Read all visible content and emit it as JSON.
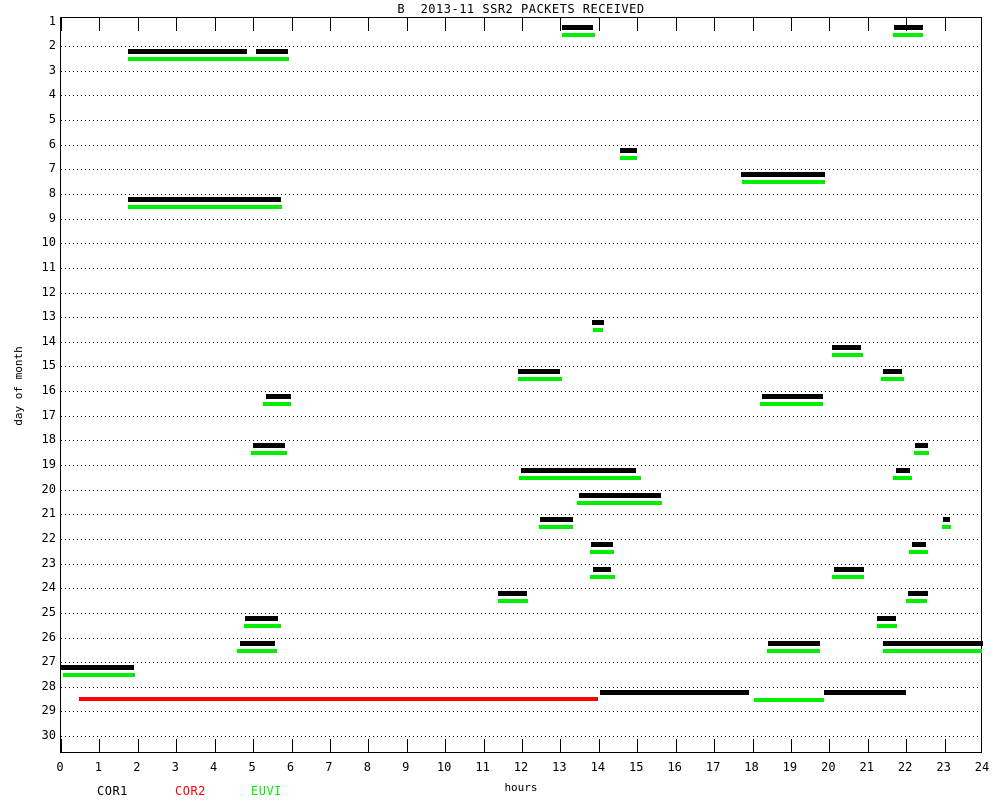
{
  "title": "B  2013-11 SSR2 PACKETS RECEIVED",
  "x_axis": {
    "title": "hours",
    "min": 0,
    "max": 24,
    "tick_labels": [
      "0",
      "1",
      "2",
      "3",
      "4",
      "5",
      "6",
      "7",
      "8",
      "9",
      "10",
      "11",
      "12",
      "13",
      "14",
      "15",
      "16",
      "17",
      "18",
      "19",
      "20",
      "21",
      "22",
      "23",
      "24"
    ]
  },
  "y_axis": {
    "title": "day of month",
    "min": 1,
    "max": 30,
    "tick_labels": [
      "1",
      "2",
      "3",
      "4",
      "5",
      "6",
      "7",
      "8",
      "9",
      "10",
      "11",
      "12",
      "13",
      "14",
      "15",
      "16",
      "17",
      "18",
      "19",
      "20",
      "21",
      "22",
      "23",
      "24",
      "25",
      "26",
      "27",
      "28",
      "29",
      "30"
    ]
  },
  "legend": [
    {
      "label": "COR1",
      "color": "#000000"
    },
    {
      "label": "COR2",
      "color": "#ff0000"
    },
    {
      "label": "EUVI",
      "color": "#00ef00"
    }
  ],
  "chart_data": {
    "type": "bar",
    "subtype": "gantt-timeline",
    "title": "B  2013-11 SSR2 PACKETS RECEIVED",
    "xlabel": "hours",
    "ylabel": "day of month",
    "xlim": [
      0,
      24
    ],
    "ylim": [
      1,
      30
    ],
    "grid": "dotted horizontal per day",
    "legend_position": "bottom-left",
    "series": [
      {
        "name": "COR1",
        "color": "#000000",
        "events_day_start_end": [
          [
            1,
            13.05,
            13.85
          ],
          [
            1,
            21.68,
            22.43
          ],
          [
            2,
            1.74,
            4.83
          ],
          [
            2,
            5.08,
            5.9
          ],
          [
            6,
            14.56,
            15.0
          ],
          [
            7,
            17.7,
            19.88
          ],
          [
            8,
            1.74,
            5.73
          ],
          [
            13,
            13.81,
            14.14
          ],
          [
            14,
            20.07,
            20.82
          ],
          [
            15,
            11.89,
            13.0
          ],
          [
            15,
            21.39,
            21.88
          ],
          [
            16,
            5.34,
            5.99
          ],
          [
            16,
            18.24,
            19.83
          ],
          [
            18,
            4.99,
            5.83
          ],
          [
            18,
            22.23,
            22.58
          ],
          [
            19,
            11.97,
            14.98
          ],
          [
            19,
            21.74,
            22.1
          ],
          [
            20,
            13.49,
            15.62
          ],
          [
            21,
            12.47,
            13.34
          ],
          [
            21,
            22.97,
            23.15
          ],
          [
            22,
            13.79,
            14.38
          ],
          [
            22,
            22.14,
            22.51
          ],
          [
            23,
            13.84,
            14.33
          ],
          [
            23,
            20.13,
            20.9
          ],
          [
            24,
            11.38,
            12.14
          ],
          [
            24,
            22.06,
            22.56
          ],
          [
            25,
            4.8,
            5.65
          ],
          [
            25,
            21.24,
            21.73
          ],
          [
            26,
            4.67,
            5.57
          ],
          [
            26,
            18.41,
            19.75
          ],
          [
            26,
            21.4,
            24.0
          ],
          [
            27,
            0.0,
            1.9
          ],
          [
            28,
            14.03,
            17.9
          ],
          [
            28,
            19.87,
            21.99
          ]
        ]
      },
      {
        "name": "COR2",
        "color": "#ff0000",
        "events_day_start_end": [
          [
            28,
            0.46,
            13.97
          ]
        ]
      },
      {
        "name": "EUVI",
        "color": "#00ef00",
        "events_day_start_end": [
          [
            1,
            13.05,
            13.9
          ],
          [
            1,
            21.65,
            22.45
          ],
          [
            2,
            1.74,
            5.93
          ],
          [
            6,
            14.55,
            15.0
          ],
          [
            7,
            17.72,
            19.88
          ],
          [
            8,
            1.74,
            5.76
          ],
          [
            13,
            13.85,
            14.1
          ],
          [
            14,
            20.07,
            20.87
          ],
          [
            15,
            11.9,
            13.05
          ],
          [
            15,
            21.34,
            21.95
          ],
          [
            16,
            5.26,
            6.0
          ],
          [
            16,
            18.2,
            19.83
          ],
          [
            18,
            4.95,
            5.88
          ],
          [
            18,
            22.21,
            22.6
          ],
          [
            19,
            11.93,
            15.1
          ],
          [
            19,
            21.67,
            22.15
          ],
          [
            20,
            13.43,
            15.64
          ],
          [
            21,
            12.43,
            13.34
          ],
          [
            21,
            22.93,
            23.16
          ],
          [
            22,
            13.77,
            14.4
          ],
          [
            22,
            22.08,
            22.56
          ],
          [
            23,
            13.77,
            14.42
          ],
          [
            23,
            20.08,
            20.9
          ],
          [
            24,
            11.37,
            12.16
          ],
          [
            24,
            22.0,
            22.53
          ],
          [
            25,
            4.76,
            5.73
          ],
          [
            25,
            21.24,
            21.75
          ],
          [
            26,
            4.58,
            5.62
          ],
          [
            26,
            18.37,
            19.75
          ],
          [
            26,
            21.4,
            23.97
          ],
          [
            27,
            0.05,
            1.93
          ],
          [
            28,
            18.05,
            19.85
          ]
        ]
      }
    ]
  }
}
